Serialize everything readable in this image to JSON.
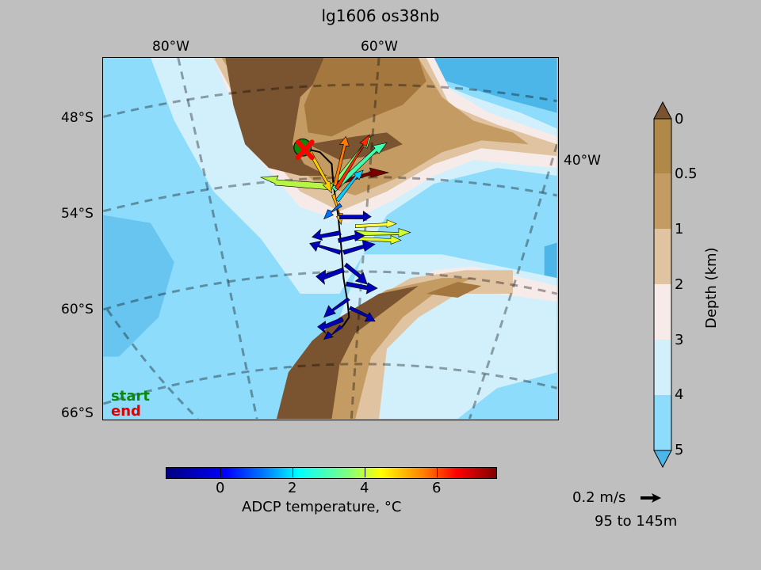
{
  "title": "lg1606 os38nb",
  "map": {
    "lon_labels_top": [
      "80°W",
      "60°W"
    ],
    "lon_label_right": "40°W",
    "lat_labels": [
      "48°S",
      "54°S",
      "60°S",
      "66°S"
    ],
    "legend": {
      "start": "start",
      "end": "end"
    },
    "colors": {
      "land_dark": "#7a5330",
      "land_mid": "#a4773f",
      "shelf": "#c49b63",
      "slope": "#e0c3a1",
      "depth2_3": "#f7ebe9",
      "depth3_4": "#d1f0fb",
      "depth4_5": "#8edcfb",
      "deep": "#4db6e8",
      "track": "#000000",
      "start_marker": "#0a8a0a",
      "end_marker": "#ff0000"
    }
  },
  "temperature_colorbar": {
    "label": "ADCP temperature, °C",
    "ticks": [
      "0",
      "2",
      "4",
      "6"
    ]
  },
  "depth_colorbar": {
    "label": "Depth (km)",
    "ticks": [
      "0",
      "0.5",
      "1",
      "2",
      "3",
      "4",
      "5"
    ],
    "colors": [
      "#7a5330",
      "#b08848",
      "#c49b63",
      "#e0c3a1",
      "#f7ebe9",
      "#d1f0fb",
      "#8edcfb",
      "#4db6e8"
    ]
  },
  "scale": {
    "speed": "0.2 m/s",
    "depth_range": "95 to 145m"
  }
}
